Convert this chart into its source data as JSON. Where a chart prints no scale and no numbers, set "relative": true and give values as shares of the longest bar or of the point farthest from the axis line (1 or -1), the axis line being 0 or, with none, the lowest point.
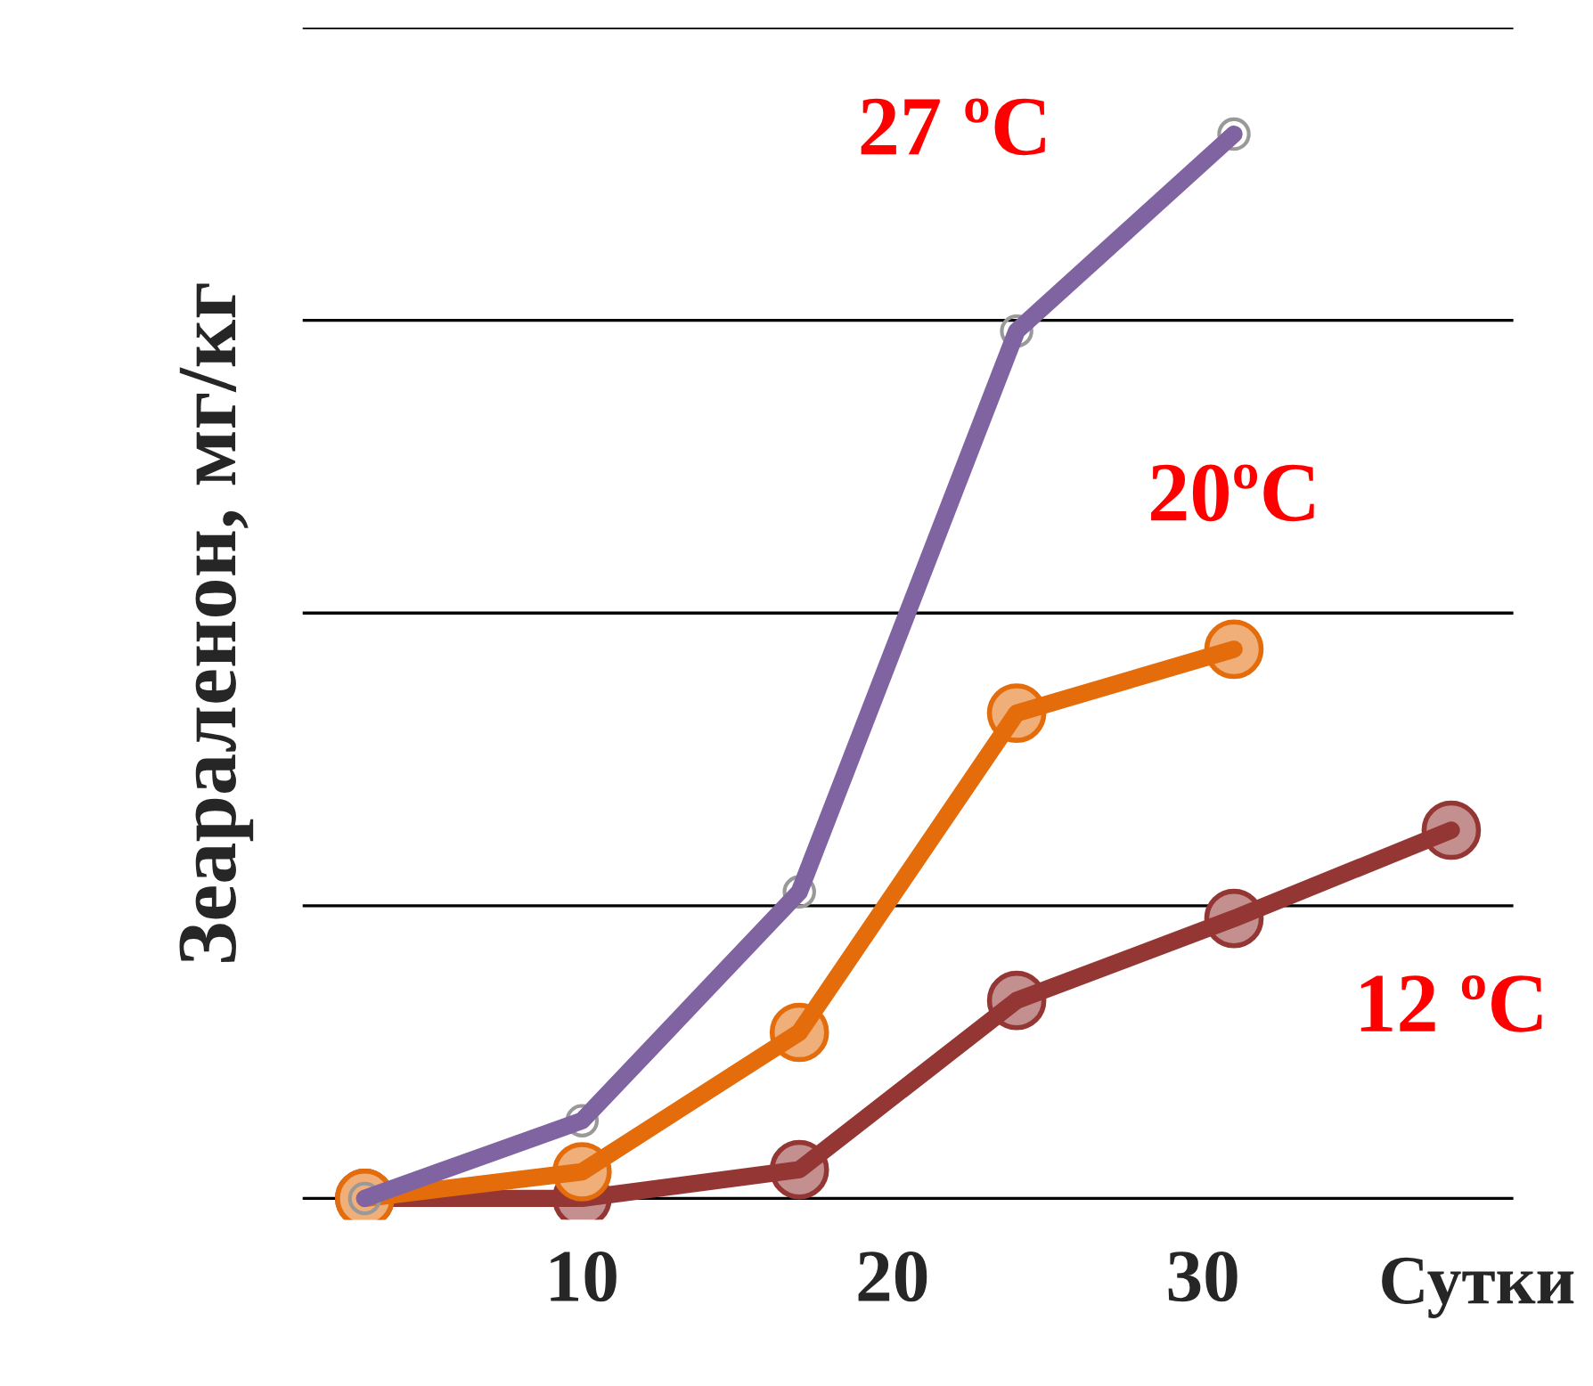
{
  "chart_data": {
    "type": "line",
    "relative": true,
    "xlabel": "Сутки",
    "ylabel": "Зеараленон, мг/кг",
    "x": [
      3,
      10,
      17,
      24,
      31,
      38
    ],
    "xlim": [
      1,
      40
    ],
    "xticks": [
      10,
      20,
      30
    ],
    "grid": "y",
    "marker": "circle",
    "line_style": "solid",
    "series": [
      {
        "name": "27 ºC",
        "color": "#8064a2",
        "values": [
          0,
          0.073,
          0.288,
          0.815,
          1,
          null
        ]
      },
      {
        "name": "20ºC",
        "color": "#e46c0a",
        "values": [
          0,
          0.025,
          0.156,
          0.456,
          0.516,
          null
        ]
      },
      {
        "name": "12 ºC",
        "color": "#943634",
        "values": [
          0,
          0,
          0.027,
          0.186,
          0.263,
          0.346
        ]
      }
    ]
  }
}
